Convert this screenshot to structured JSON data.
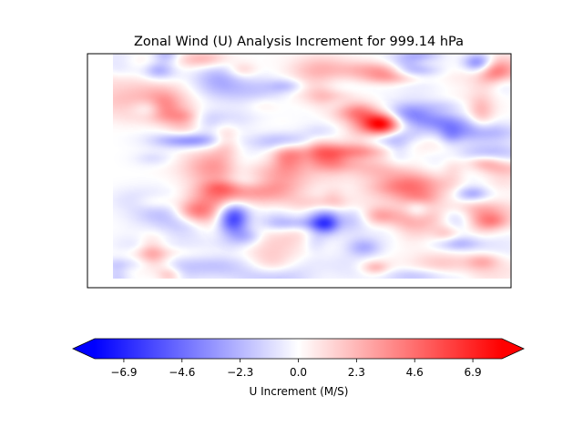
{
  "chart_data": {
    "type": "heatmap",
    "title": "Zonal Wind (U) Analysis Increment for 999.14 hPa",
    "colorbar": {
      "label": "U Increment (M/S)",
      "ticks": [
        -6.9,
        -4.6,
        -2.3,
        0.0,
        2.3,
        4.6,
        6.9
      ],
      "tick_labels": [
        "−6.9",
        "−4.6",
        "−2.3",
        "0.0",
        "2.3",
        "4.6",
        "6.9"
      ],
      "range": [
        -8.05,
        8.05
      ],
      "extend": "both",
      "orientation": "horizontal",
      "colormap": "bwr",
      "color_min": "#0000ff",
      "color_mid": "#ffffff",
      "color_max": "#ff0000"
    },
    "features": [
      {
        "x": 0.675,
        "y": 0.31,
        "value": 7.5,
        "sx": 0.03,
        "sy": 0.035
      },
      {
        "x": 0.3,
        "y": 0.73,
        "value": -7.2,
        "sx": 0.028,
        "sy": 0.05
      },
      {
        "x": 0.34,
        "y": 0.81,
        "value": -3.0,
        "sx": 0.03,
        "sy": 0.03
      },
      {
        "x": 0.2,
        "y": 0.7,
        "value": 3.5,
        "sx": 0.035,
        "sy": 0.035
      },
      {
        "x": 0.43,
        "y": 0.39,
        "value": -3.0,
        "sx": 0.05,
        "sy": 0.03
      },
      {
        "x": 0.46,
        "y": 0.44,
        "value": 2.5,
        "sx": 0.06,
        "sy": 0.04
      },
      {
        "x": 0.77,
        "y": 0.64,
        "value": 2.8,
        "sx": 0.035,
        "sy": 0.03
      },
      {
        "x": 0.9,
        "y": 0.62,
        "value": -3.0,
        "sx": 0.03,
        "sy": 0.025
      },
      {
        "x": 0.86,
        "y": 0.72,
        "value": -2.2,
        "sx": 0.03,
        "sy": 0.03
      },
      {
        "x": 0.96,
        "y": 0.08,
        "value": 3.2,
        "sx": 0.03,
        "sy": 0.04
      },
      {
        "x": 0.53,
        "y": 0.76,
        "value": -3.2,
        "sx": 0.025,
        "sy": 0.03
      },
      {
        "x": 0.63,
        "y": 0.86,
        "value": -2.5,
        "sx": 0.03,
        "sy": 0.03
      },
      {
        "x": 0.67,
        "y": 0.72,
        "value": 2.5,
        "sx": 0.03,
        "sy": 0.03
      },
      {
        "x": 0.38,
        "y": 0.6,
        "value": 2.0,
        "sx": 0.05,
        "sy": 0.04
      },
      {
        "x": 0.09,
        "y": 0.24,
        "value": -1.8,
        "sx": 0.03,
        "sy": 0.03
      },
      {
        "x": 0.93,
        "y": 0.92,
        "value": 2.0,
        "sx": 0.03,
        "sy": 0.025
      }
    ]
  }
}
